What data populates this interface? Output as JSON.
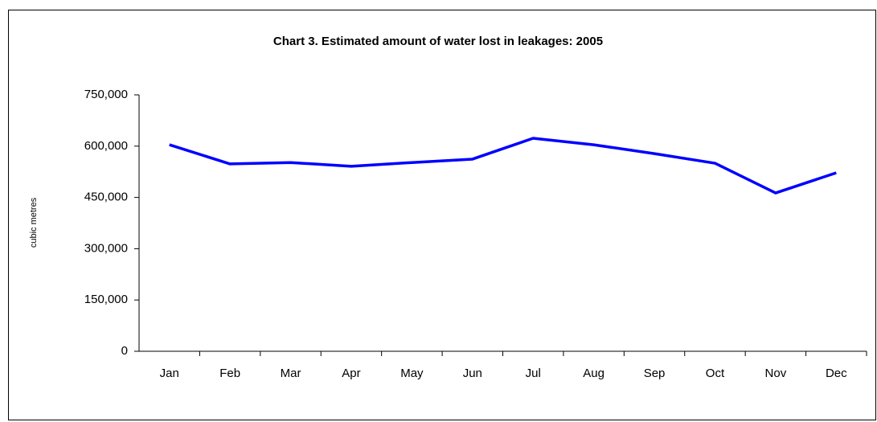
{
  "chart_data": {
    "type": "line",
    "title": "Chart 3.  Estimated amount of water lost in leakages: 2005",
    "y_label": "cubic metres",
    "categories": [
      "Jan",
      "Feb",
      "Mar",
      "Apr",
      "May",
      "Jun",
      "Jul",
      "Aug",
      "Sep",
      "Oct",
      "Nov",
      "Dec"
    ],
    "series": [
      {
        "name": "Water lost",
        "color": "#0000ff",
        "values": [
          604000,
          548000,
          552000,
          541000,
          552000,
          562000,
          623000,
          604000,
          578000,
          550000,
          463000,
          522000
        ]
      }
    ],
    "ylim": [
      0,
      750000
    ],
    "yticks": [
      0,
      {
        "value": 150000,
        "label": "150,000"
      },
      {
        "value": 300000,
        "label": "300,000"
      },
      {
        "value": 450000,
        "label": "450,000"
      },
      {
        "value": 600000,
        "label": "600,000"
      },
      {
        "value": 750000,
        "label": "750,000"
      }
    ],
    "grid": false
  }
}
